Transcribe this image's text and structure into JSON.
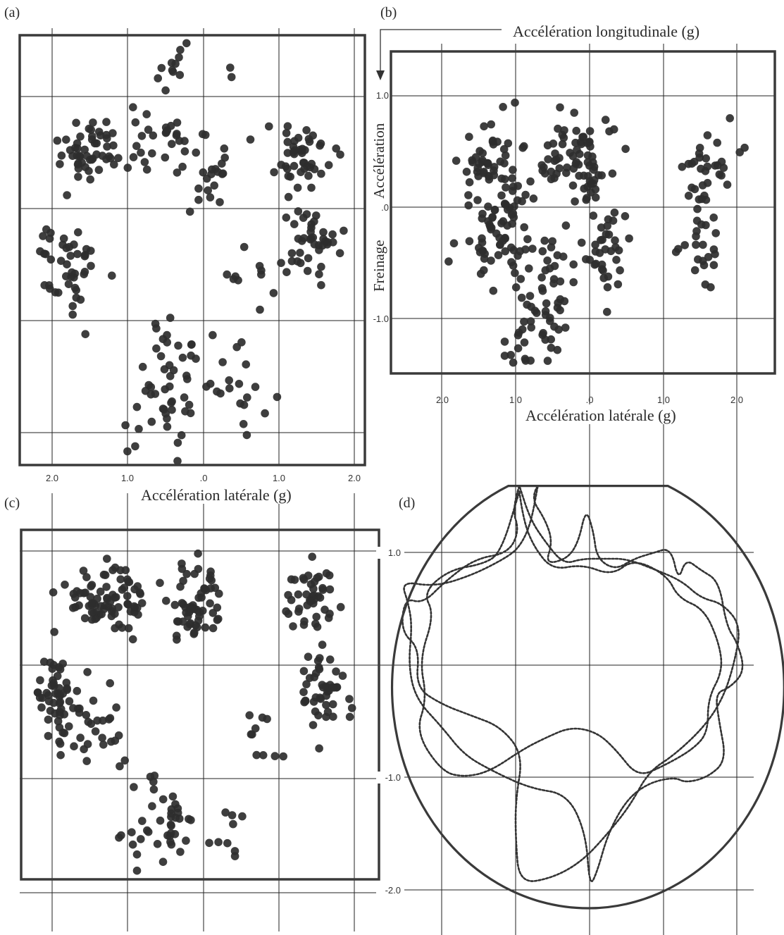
{
  "colors": {
    "ink": "#2f2f2f",
    "frame": "#3a3a3a",
    "grid": "#222222",
    "dot": "#2e2e2e",
    "dashed": "#333333"
  },
  "figure": {
    "axis_title_longitudinal": "Accélération longitudinale (g)",
    "axis_title_lateral": "Accélération latérale (g)",
    "label_acceleration": "Accélération",
    "label_braking": "Freinage"
  },
  "chart_data": [
    {
      "panel": "(a)",
      "type": "scatter",
      "xlim": [
        2.4,
        -2.3
      ],
      "ylim": [
        -2.3,
        1.5
      ],
      "x_ticks": [
        2.0,
        1.0,
        0.0,
        -1.0,
        -2.0
      ],
      "x_tick_labels": [
        "2.0",
        "1.0",
        ".0",
        "1.0",
        "2.0"
      ],
      "y_ticks": [
        1.0,
        0.0,
        -1.0,
        -2.0
      ],
      "xlabel": "Accélération latérale (g)",
      "grid": true,
      "clusters": [
        {
          "cx": 1.4,
          "cy": 0.55,
          "sx": 0.45,
          "sy": 0.25,
          "n": 55
        },
        {
          "cx": 0.5,
          "cy": 0.6,
          "sx": 0.35,
          "sy": 0.3,
          "n": 25
        },
        {
          "cx": -0.1,
          "cy": 0.3,
          "sx": 0.25,
          "sy": 0.3,
          "n": 20
        },
        {
          "cx": -1.3,
          "cy": 0.5,
          "sx": 0.35,
          "sy": 0.25,
          "n": 45
        },
        {
          "cx": 1.8,
          "cy": -0.5,
          "sx": 0.35,
          "sy": 0.4,
          "n": 45
        },
        {
          "cx": -1.4,
          "cy": -0.3,
          "sx": 0.35,
          "sy": 0.3,
          "n": 40
        },
        {
          "cx": 0.5,
          "cy": -1.6,
          "sx": 0.4,
          "sy": 0.55,
          "n": 50
        },
        {
          "cx": -0.4,
          "cy": -1.6,
          "sx": 0.4,
          "sy": 0.4,
          "n": 20
        },
        {
          "cx": 0.4,
          "cy": 1.3,
          "sx": 0.5,
          "sy": 0.25,
          "n": 12
        },
        {
          "cx": -0.8,
          "cy": -0.6,
          "sx": 0.5,
          "sy": 0.5,
          "n": 12
        }
      ]
    },
    {
      "panel": "(b)",
      "type": "scatter",
      "xlim": [
        2.65,
        -2.35
      ],
      "ylim": [
        -1.45,
        1.42
      ],
      "x_ticks": [
        2.0,
        1.0,
        0.0,
        -1.0,
        -2.0
      ],
      "x_tick_labels": [
        "2.0",
        "1.0",
        ".0",
        "1.0",
        "2.0"
      ],
      "y_ticks": [
        1.0,
        0.0,
        -1.0
      ],
      "y_tick_labels": [
        "1.0",
        ".0",
        "-1.0"
      ],
      "xlabel": "Accélération latérale (g)",
      "ylabel_top": "Accélération",
      "ylabel_bottom": "Freinage",
      "grid": true,
      "clusters": [
        {
          "cx": 1.3,
          "cy": 0.35,
          "sx": 0.45,
          "sy": 0.35,
          "n": 60
        },
        {
          "cx": 0.4,
          "cy": 0.5,
          "sx": 0.4,
          "sy": 0.3,
          "n": 40
        },
        {
          "cx": 0.0,
          "cy": 0.3,
          "sx": 0.3,
          "sy": 0.35,
          "n": 35
        },
        {
          "cx": -1.6,
          "cy": 0.4,
          "sx": 0.35,
          "sy": 0.3,
          "n": 30
        },
        {
          "cx": 1.2,
          "cy": -0.3,
          "sx": 0.4,
          "sy": 0.35,
          "n": 60
        },
        {
          "cx": -0.2,
          "cy": -0.35,
          "sx": 0.3,
          "sy": 0.3,
          "n": 35
        },
        {
          "cx": -1.5,
          "cy": -0.3,
          "sx": 0.3,
          "sy": 0.35,
          "n": 25
        },
        {
          "cx": 0.7,
          "cy": -1.1,
          "sx": 0.35,
          "sy": 0.25,
          "n": 40
        },
        {
          "cx": 0.5,
          "cy": -0.6,
          "sx": 0.3,
          "sy": 0.3,
          "n": 20
        }
      ]
    },
    {
      "panel": "(c)",
      "type": "scatter",
      "xlim": [
        2.4,
        -2.3
      ],
      "ylim": [
        -2.0,
        1.05
      ],
      "x_ticks": [
        2.0,
        1.0,
        0.0,
        -1.0,
        -2.0
      ],
      "y_ticks": [
        1.0,
        0.0,
        -1.0
      ],
      "grid": true,
      "clusters": [
        {
          "cx": 1.3,
          "cy": 0.6,
          "sx": 0.4,
          "sy": 0.25,
          "n": 80
        },
        {
          "cx": 0.1,
          "cy": 0.55,
          "sx": 0.35,
          "sy": 0.28,
          "n": 60
        },
        {
          "cx": -1.4,
          "cy": 0.6,
          "sx": 0.3,
          "sy": 0.25,
          "n": 45
        },
        {
          "cx": 1.9,
          "cy": -0.3,
          "sx": 0.3,
          "sy": 0.35,
          "n": 55
        },
        {
          "cx": 1.5,
          "cy": -0.6,
          "sx": 0.35,
          "sy": 0.3,
          "n": 25
        },
        {
          "cx": -1.6,
          "cy": -0.25,
          "sx": 0.3,
          "sy": 0.3,
          "n": 45
        },
        {
          "cx": 0.5,
          "cy": -1.4,
          "sx": 0.35,
          "sy": 0.3,
          "n": 40
        },
        {
          "cx": -0.3,
          "cy": -1.5,
          "sx": 0.3,
          "sy": 0.25,
          "n": 10
        },
        {
          "cx": -0.8,
          "cy": -0.7,
          "sx": 0.3,
          "sy": 0.4,
          "n": 10
        }
      ]
    },
    {
      "panel": "(d)",
      "type": "line",
      "xlim": [
        2.65,
        -2.35
      ],
      "ylim": [
        -2.15,
        1.65
      ],
      "x_ticks": [
        2.0,
        1.0,
        0.0,
        -1.0,
        -2.0
      ],
      "y_ticks": [
        1.0,
        0.0,
        -1.0,
        -2.0
      ],
      "y_tick_labels": [
        "1.0",
        "-1.0",
        "-2.0"
      ],
      "envelope": {
        "shape": "ellipse with flat top",
        "center": [
          0.02,
          -0.2
        ],
        "rx": 2.65,
        "ry": 1.97,
        "flat_top_y": 1.6,
        "flat_top_x": [
          1.0,
          -1.0
        ]
      },
      "series": [
        {
          "style": "dashed",
          "points": [
            [
              0.7,
              1.6
            ],
            [
              0.8,
              1.5
            ],
            [
              0.6,
              1.3
            ],
            [
              0.5,
              1.1
            ],
            [
              0.6,
              0.9
            ],
            [
              0.3,
              0.95
            ],
            [
              0.15,
              1.1
            ],
            [
              0.05,
              1.4
            ],
            [
              -0.05,
              1.2
            ],
            [
              -0.1,
              0.95
            ],
            [
              -0.35,
              0.85
            ],
            [
              -0.6,
              0.95
            ],
            [
              -0.85,
              1.0
            ],
            [
              -1.1,
              1.05
            ],
            [
              -1.2,
              0.75
            ],
            [
              -1.3,
              0.95
            ],
            [
              -1.5,
              0.85
            ],
            [
              -1.75,
              0.75
            ],
            [
              -1.85,
              0.35
            ],
            [
              -2.0,
              0.2
            ],
            [
              -2.1,
              -0.05
            ],
            [
              -1.9,
              -0.2
            ],
            [
              -1.7,
              -0.25
            ],
            [
              -1.75,
              -0.5
            ],
            [
              -1.85,
              -0.85
            ],
            [
              -1.6,
              -1.0
            ],
            [
              -1.3,
              -1.05
            ],
            [
              -1.15,
              -1.0
            ],
            [
              -0.8,
              -1.05
            ],
            [
              -0.5,
              -1.2
            ],
            [
              -0.25,
              -1.5
            ],
            [
              -0.1,
              -1.85
            ],
            [
              0.0,
              -1.98
            ],
            [
              0.05,
              -1.5
            ],
            [
              0.3,
              -1.15
            ],
            [
              0.8,
              -1.1
            ],
            [
              1.3,
              -0.95
            ],
            [
              1.7,
              -0.8
            ],
            [
              2.0,
              -0.55
            ],
            [
              2.35,
              -0.3
            ],
            [
              2.45,
              0.0
            ],
            [
              2.4,
              0.35
            ],
            [
              2.45,
              0.55
            ],
            [
              2.55,
              0.75
            ],
            [
              2.1,
              0.7
            ],
            [
              1.6,
              0.8
            ],
            [
              1.15,
              0.95
            ],
            [
              0.95,
              1.05
            ],
            [
              0.8,
              1.25
            ],
            [
              0.7,
              1.6
            ]
          ]
        },
        {
          "style": "dashed",
          "points": [
            [
              0.95,
              1.55
            ],
            [
              0.9,
              1.3
            ],
            [
              0.75,
              1.05
            ],
            [
              0.5,
              0.85
            ],
            [
              0.1,
              0.9
            ],
            [
              -0.3,
              0.8
            ],
            [
              -0.6,
              0.95
            ],
            [
              -1.05,
              0.8
            ],
            [
              -1.2,
              0.6
            ],
            [
              -1.55,
              0.5
            ],
            [
              -1.75,
              0.2
            ],
            [
              -1.8,
              -0.05
            ],
            [
              -1.6,
              -0.3
            ],
            [
              -1.6,
              -0.6
            ],
            [
              -1.4,
              -0.75
            ],
            [
              -1.0,
              -0.9
            ],
            [
              -0.65,
              -1.0
            ],
            [
              -0.35,
              -0.75
            ],
            [
              -0.1,
              -0.6
            ],
            [
              0.25,
              -0.55
            ],
            [
              0.6,
              -0.65
            ],
            [
              0.9,
              -0.75
            ],
            [
              1.35,
              -0.95
            ],
            [
              1.7,
              -1.0
            ],
            [
              2.0,
              -0.95
            ],
            [
              2.35,
              -0.6
            ],
            [
              2.2,
              -0.3
            ],
            [
              2.3,
              0.05
            ],
            [
              2.1,
              0.45
            ],
            [
              2.25,
              0.65
            ],
            [
              1.9,
              0.85
            ],
            [
              1.45,
              0.9
            ],
            [
              1.2,
              1.0
            ],
            [
              0.95,
              1.55
            ]
          ]
        },
        {
          "style": "dashed",
          "points": [
            [
              0.95,
              1.6
            ],
            [
              1.05,
              1.4
            ],
            [
              0.95,
              1.2
            ],
            [
              1.1,
              1.0
            ],
            [
              1.55,
              0.95
            ],
            [
              1.95,
              0.75
            ],
            [
              2.25,
              0.55
            ],
            [
              2.5,
              0.6
            ],
            [
              2.55,
              0.3
            ],
            [
              2.3,
              0.15
            ],
            [
              2.35,
              -0.2
            ],
            [
              2.0,
              -0.35
            ],
            [
              1.6,
              -0.45
            ],
            [
              1.2,
              -0.55
            ],
            [
              0.9,
              -0.8
            ],
            [
              1.0,
              -1.2
            ],
            [
              1.0,
              -1.55
            ],
            [
              0.95,
              -1.95
            ],
            [
              0.5,
              -1.9
            ],
            [
              0.1,
              -1.75
            ],
            [
              -0.25,
              -1.5
            ],
            [
              -0.55,
              -1.25
            ],
            [
              -0.8,
              -0.95
            ],
            [
              -1.15,
              -0.8
            ],
            [
              -1.55,
              -0.55
            ],
            [
              -1.8,
              -0.3
            ],
            [
              -1.95,
              0.0
            ],
            [
              -2.05,
              0.35
            ],
            [
              -1.8,
              0.55
            ],
            [
              -1.5,
              0.6
            ],
            [
              -1.25,
              0.75
            ],
            [
              -0.9,
              0.85
            ],
            [
              -0.5,
              0.95
            ],
            [
              -0.2,
              0.95
            ],
            [
              0.1,
              0.95
            ],
            [
              0.35,
              0.9
            ],
            [
              0.6,
              1.1
            ],
            [
              0.8,
              1.3
            ],
            [
              0.95,
              1.6
            ]
          ]
        }
      ]
    }
  ]
}
